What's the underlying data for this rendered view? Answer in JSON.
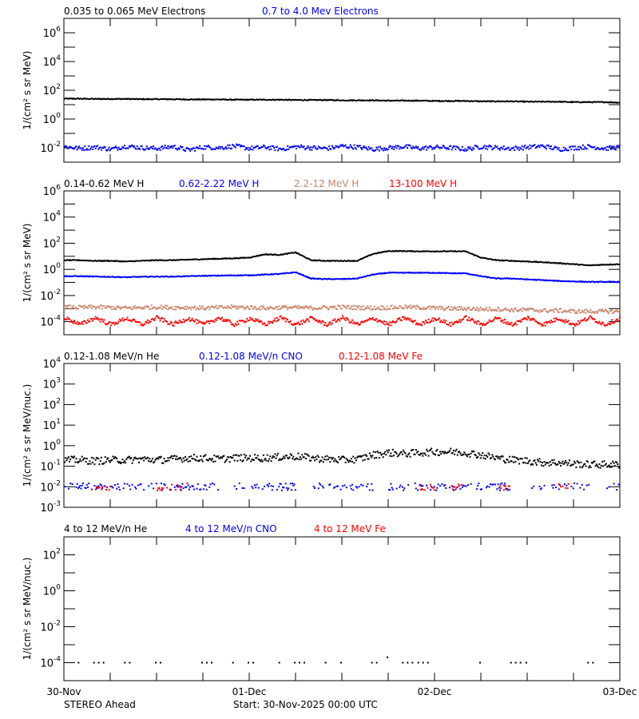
{
  "footer": {
    "spacecraft": "STEREO Ahead",
    "start": "Start: 30-Nov-2025 00:00 UTC"
  },
  "x_axis": {
    "range": [
      "30-Nov-2025 00:00",
      "03-Dec-2025 00:00"
    ],
    "tick_labels": [
      "30-Nov",
      "01-Dec",
      "02-Dec",
      "03-Dec"
    ],
    "minor_tick_interval": "6 h",
    "times": [
      "30-Nov 00:00",
      "30-Nov 02:00",
      "30-Nov 04:00",
      "30-Nov 06:00",
      "30-Nov 08:00",
      "30-Nov 10:00",
      "30-Nov 12:00",
      "30-Nov 14:00",
      "30-Nov 16:00",
      "30-Nov 18:00",
      "30-Nov 20:00",
      "30-Nov 22:00",
      "01-Dec 00:00",
      "01-Dec 02:00",
      "01-Dec 04:00",
      "01-Dec 06:00",
      "01-Dec 08:00",
      "01-Dec 10:00",
      "01-Dec 12:00",
      "01-Dec 14:00",
      "01-Dec 16:00",
      "01-Dec 18:00",
      "01-Dec 20:00",
      "01-Dec 22:00",
      "02-Dec 00:00",
      "02-Dec 02:00",
      "02-Dec 04:00",
      "02-Dec 06:00",
      "02-Dec 08:00",
      "02-Dec 10:00",
      "02-Dec 12:00",
      "02-Dec 14:00",
      "02-Dec 16:00",
      "02-Dec 18:00",
      "02-Dec 20:00",
      "02-Dec 22:00",
      "03-Dec 00:00"
    ]
  },
  "chart_data": [
    {
      "type": "line",
      "ylabel": "1/(cm² s sr MeV)",
      "yscale": "log",
      "ylim": [
        0.001,
        10000000.0
      ],
      "ytick_labels": [
        {
          "value": 0.01,
          "base": "10",
          "exp": "-2"
        },
        {
          "value": 1,
          "base": "10",
          "exp": "0"
        },
        {
          "value": 100.0,
          "base": "10",
          "exp": "2"
        },
        {
          "value": 10000.0,
          "base": "10",
          "exp": "4"
        },
        {
          "value": 1000000.0,
          "base": "10",
          "exp": "6"
        }
      ],
      "series": [
        {
          "name": "0.035 to 0.065 MeV Electrons",
          "color": "#000000",
          "style": "line",
          "values": [
            26,
            26,
            25,
            25,
            25,
            24,
            24,
            24,
            23,
            23,
            23,
            22,
            22,
            22,
            22,
            21,
            21,
            21,
            20,
            20,
            20,
            19,
            19,
            19,
            18,
            18,
            18,
            17,
            17,
            17,
            16,
            16,
            16,
            15,
            15,
            15,
            14
          ]
        },
        {
          "name": "0.7 to 4.0 Mev Electrons",
          "color": "#0000ff",
          "style": "scatter",
          "values": [
            0.012,
            0.009,
            0.011,
            0.008,
            0.013,
            0.01,
            0.009,
            0.012,
            0.007,
            0.011,
            0.01,
            0.013,
            0.009,
            0.011,
            0.008,
            0.012,
            0.01,
            0.009,
            0.013,
            0.011,
            0.008,
            0.01,
            0.012,
            0.009,
            0.011,
            0.01,
            0.008,
            0.012,
            0.01,
            0.009,
            0.011,
            0.013,
            0.008,
            0.01,
            0.012,
            0.009,
            0.011
          ]
        }
      ]
    },
    {
      "type": "line",
      "ylabel": "1/(cm² s sr MeV)",
      "yscale": "log",
      "ylim": [
        1e-05,
        1000000.0
      ],
      "ytick_labels": [
        {
          "value": 0.0001,
          "base": "10",
          "exp": "-4"
        },
        {
          "value": 0.01,
          "base": "10",
          "exp": "-2"
        },
        {
          "value": 1,
          "base": "10",
          "exp": "0"
        },
        {
          "value": 100.0,
          "base": "10",
          "exp": "2"
        },
        {
          "value": 10000.0,
          "base": "10",
          "exp": "4"
        },
        {
          "value": 1000000.0,
          "base": "10",
          "exp": "6"
        }
      ],
      "series": [
        {
          "name": "0.14-0.62 MeV H",
          "color": "#000000",
          "style": "line",
          "values": [
            5,
            5,
            4.5,
            4.5,
            4,
            4.5,
            5,
            5,
            5.5,
            6,
            6.5,
            7,
            8,
            14,
            13,
            20,
            5,
            4.5,
            4.5,
            4.5,
            15,
            25,
            25,
            24,
            24,
            24,
            24,
            8,
            5,
            4.5,
            4,
            3.5,
            3,
            2.5,
            2,
            2.3,
            2.5
          ]
        },
        {
          "name": "0.62-2.22 MeV H",
          "color": "#0000ff",
          "style": "line",
          "values": [
            0.3,
            0.3,
            0.28,
            0.27,
            0.25,
            0.27,
            0.28,
            0.28,
            0.3,
            0.32,
            0.33,
            0.35,
            0.35,
            0.4,
            0.45,
            0.6,
            0.2,
            0.18,
            0.18,
            0.2,
            0.4,
            0.55,
            0.55,
            0.55,
            0.55,
            0.5,
            0.5,
            0.3,
            0.2,
            0.2,
            0.17,
            0.15,
            0.13,
            0.12,
            0.11,
            0.11,
            0.11
          ]
        },
        {
          "name": "2.2-12 MeV H",
          "color": "#c8846a",
          "style": "scatter",
          "values": [
            0.0013,
            0.0012,
            0.0013,
            0.0012,
            0.0011,
            0.0012,
            0.0013,
            0.0012,
            0.0012,
            0.0011,
            0.0012,
            0.0013,
            0.0012,
            0.0011,
            0.0012,
            0.0012,
            0.0011,
            0.0012,
            0.0013,
            0.0012,
            0.0011,
            0.0012,
            0.0013,
            0.0012,
            0.0011,
            0.001,
            0.001,
            0.0009,
            0.0009,
            0.0008,
            0.0008,
            0.0007,
            0.0007,
            0.0006,
            0.0006,
            0.0006,
            0.0006
          ]
        },
        {
          "name": "13-100 MeV H",
          "color": "#ff0000",
          "style": "scatter",
          "values": [
            0.0002,
            6e-05,
            0.0002,
            6e-05,
            0.00018,
            6e-05,
            0.0002,
            6e-05,
            0.00018,
            6e-05,
            0.0002,
            6e-05,
            0.00018,
            6e-05,
            0.0002,
            6e-05,
            0.00018,
            6e-05,
            0.0002,
            6e-05,
            0.00018,
            6e-05,
            0.0002,
            6e-05,
            0.00018,
            6e-05,
            0.0002,
            6e-05,
            0.00018,
            6e-05,
            0.0002,
            6e-05,
            0.00018,
            6e-05,
            0.0002,
            6e-05,
            0.00018
          ]
        }
      ]
    },
    {
      "type": "scatter",
      "ylabel": "1/(cm² s sr MeV/nuc.)",
      "yscale": "log",
      "ylim": [
        0.001,
        10000.0
      ],
      "ytick_labels": [
        {
          "value": 0.001,
          "base": "10",
          "exp": "-3"
        },
        {
          "value": 0.01,
          "base": "10",
          "exp": "-2"
        },
        {
          "value": 0.1,
          "base": "10",
          "exp": "-1"
        },
        {
          "value": 1,
          "base": "10",
          "exp": "0"
        },
        {
          "value": 10,
          "base": "10",
          "exp": "1"
        },
        {
          "value": 100,
          "base": "10",
          "exp": "2"
        },
        {
          "value": 1000.0,
          "base": "10",
          "exp": "3"
        },
        {
          "value": 10000.0,
          "base": "10",
          "exp": "4"
        }
      ],
      "series": [
        {
          "name": "0.12-1.08 MeV/n He",
          "color": "#000000",
          "style": "scatter",
          "values": [
            0.2,
            0.2,
            0.18,
            0.2,
            0.2,
            0.22,
            0.2,
            0.22,
            0.25,
            0.25,
            0.22,
            0.25,
            0.25,
            0.25,
            0.28,
            0.3,
            0.25,
            0.22,
            0.2,
            0.22,
            0.35,
            0.45,
            0.4,
            0.45,
            0.5,
            0.5,
            0.45,
            0.35,
            0.25,
            0.2,
            0.18,
            0.15,
            0.15,
            0.13,
            0.12,
            0.12,
            0.12
          ]
        },
        {
          "name": "0.12-1.08 MeV/n CNO",
          "color": "#0000ff",
          "style": "scatter",
          "values": [
            0.01,
            0.01,
            0.01,
            0.01,
            0.01,
            0.01,
            0.01,
            0.01,
            0.01,
            0.01,
            null,
            0.01,
            0.01,
            0.01,
            0.01,
            null,
            0.01,
            0.01,
            0.01,
            0.01,
            null,
            0.01,
            0.01,
            0.01,
            0.01,
            0.01,
            0.01,
            0.01,
            0.01,
            null,
            0.01,
            0.01,
            0.01,
            0.01,
            null,
            0.01,
            0.01
          ]
        },
        {
          "name": "0.12-1.08 MeV Fe",
          "color": "#ff0000",
          "style": "scatter",
          "values": [
            null,
            null,
            0.01,
            null,
            null,
            null,
            0.01,
            0.01,
            null,
            null,
            null,
            null,
            null,
            null,
            null,
            null,
            null,
            null,
            null,
            null,
            null,
            null,
            null,
            0.01,
            null,
            0.01,
            null,
            null,
            0.01,
            null,
            null,
            null,
            0.01,
            null,
            null,
            null,
            0.01
          ]
        }
      ]
    },
    {
      "type": "scatter",
      "ylabel": "1/(cm² s sr MeV/nuc.)",
      "yscale": "log",
      "ylim": [
        1e-05,
        1000.0
      ],
      "ytick_labels": [
        {
          "value": 0.0001,
          "base": "10",
          "exp": "-4"
        },
        {
          "value": 0.01,
          "base": "10",
          "exp": "-2"
        },
        {
          "value": 1,
          "base": "10",
          "exp": "0"
        },
        {
          "value": 100,
          "base": "10",
          "exp": "2"
        }
      ],
      "series": [
        {
          "name": "4 to 12 MeV/n He",
          "color": "#000000",
          "style": "sparse",
          "values": [
            null,
            0.0001,
            0.0001,
            null,
            0.0001,
            null,
            0.0001,
            null,
            null,
            0.0001,
            null,
            0.0001,
            0.0001,
            null,
            0.0001,
            0.0001,
            null,
            0.0001,
            0.0001,
            null,
            0.0001,
            0.0002,
            0.0001,
            0.0001,
            null,
            null,
            null,
            0.0001,
            null,
            0.0001,
            0.0001,
            null,
            null,
            null,
            0.0001,
            null,
            null
          ]
        },
        {
          "name": "4 to 12 MeV/n CNO",
          "color": "#0000ff",
          "style": "sparse",
          "values": []
        },
        {
          "name": "4 to 12 MeV Fe",
          "color": "#ff0000",
          "style": "sparse",
          "values": []
        }
      ]
    }
  ]
}
